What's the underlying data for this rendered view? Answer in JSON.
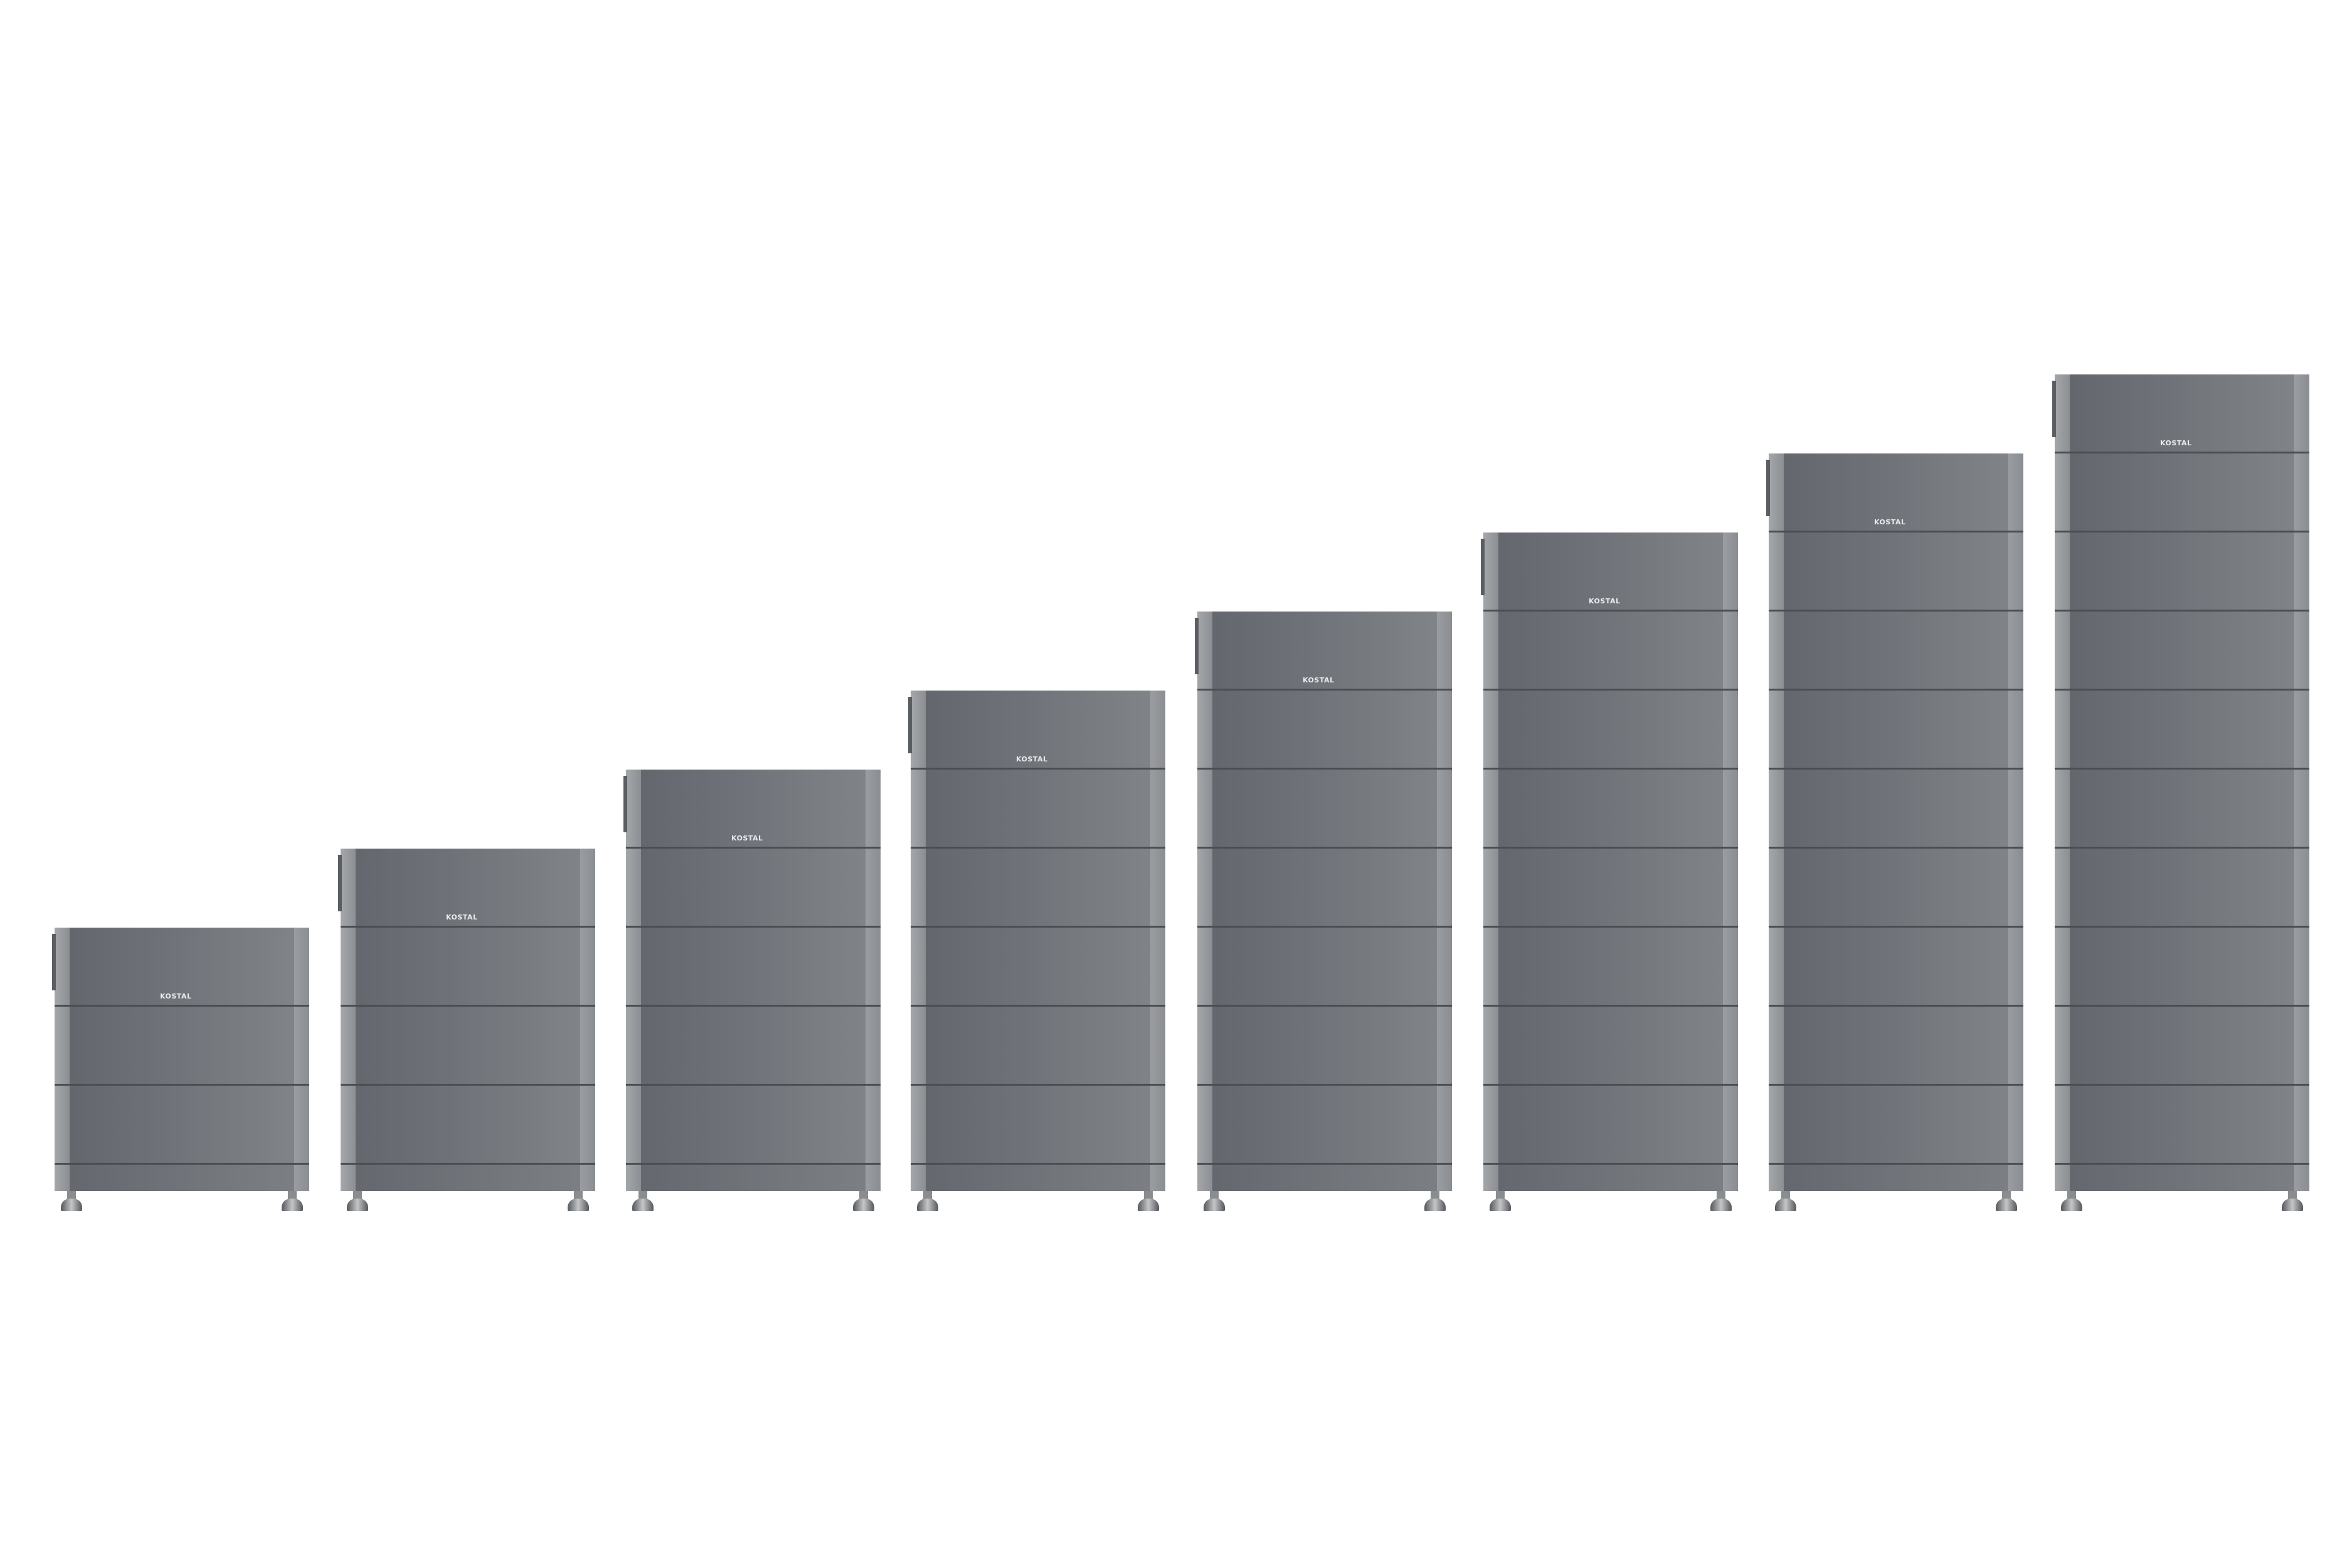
{
  "brand_logo": "KOSTAL",
  "colors": {
    "module": "#6f7379",
    "edge": "#9a9da1",
    "background": "#ffffff"
  },
  "units": [
    {
      "modules": 3
    },
    {
      "modules": 4
    },
    {
      "modules": 5
    },
    {
      "modules": 6
    },
    {
      "modules": 7
    },
    {
      "modules": 8
    },
    {
      "modules": 9
    },
    {
      "modules": 10
    }
  ]
}
